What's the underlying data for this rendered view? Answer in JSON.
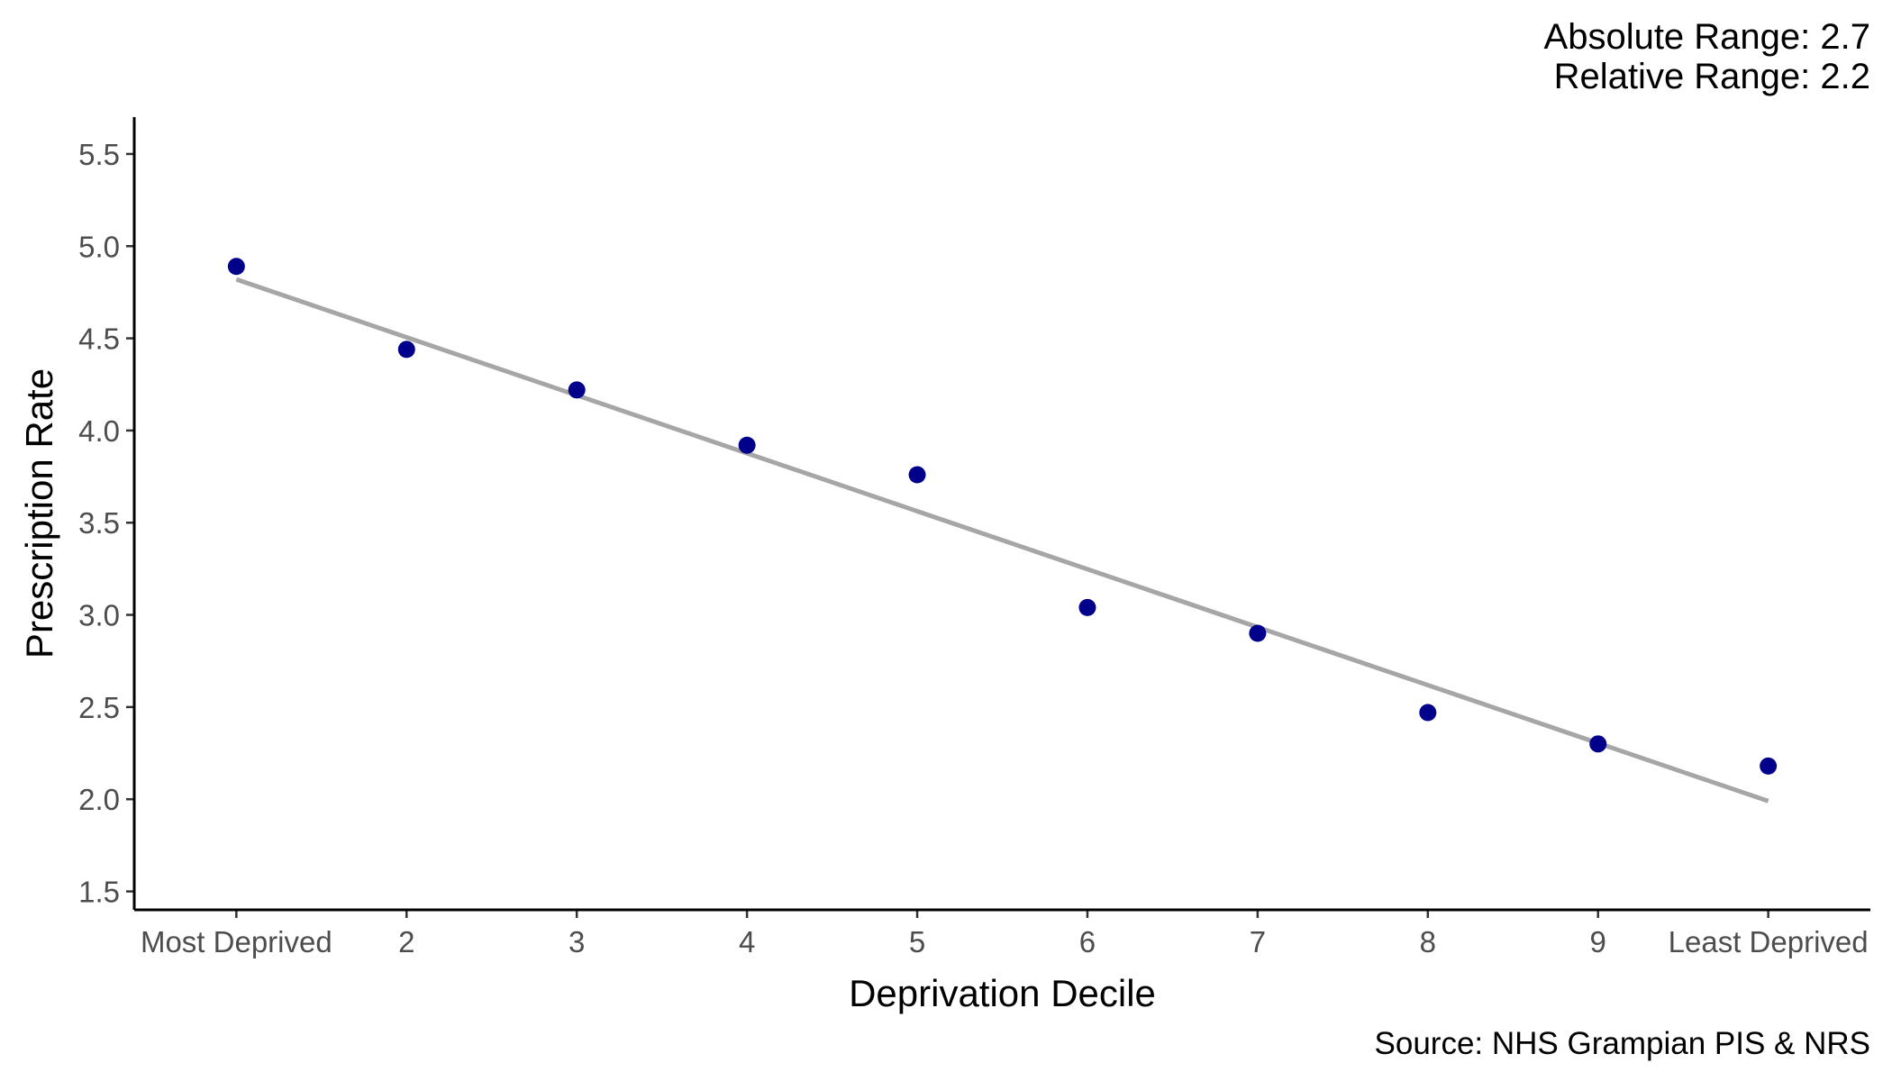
{
  "chart_data": {
    "type": "scatter",
    "title": "",
    "xlabel": "Deprivation Decile",
    "ylabel": "Prescription Rate",
    "categories": [
      "Most Deprived",
      "2",
      "3",
      "4",
      "5",
      "6",
      "7",
      "8",
      "9",
      "Least Deprived"
    ],
    "x": [
      1,
      2,
      3,
      4,
      5,
      6,
      7,
      8,
      9,
      10
    ],
    "series": [
      {
        "name": "Prescription Rate",
        "color": "#00008B",
        "values": [
          4.89,
          4.44,
          4.22,
          3.92,
          3.76,
          3.04,
          2.9,
          2.47,
          2.3,
          2.18
        ]
      }
    ],
    "trend_line": {
      "color": "#A6A6A6",
      "start": 4.82,
      "end": 1.99
    },
    "ylim": [
      1.4,
      5.7
    ],
    "xlim": [
      0.4,
      10.6
    ],
    "yticks": [
      1.5,
      2.0,
      2.5,
      3.0,
      3.5,
      4.0,
      4.5,
      5.0,
      5.5
    ],
    "ytick_labels": [
      "1.5",
      "2.0",
      "2.5",
      "3.0",
      "3.5",
      "4.0",
      "4.5",
      "5.0",
      "5.5"
    ],
    "grid": false,
    "annotations": [
      "Absolute Range: 2.7",
      "Relative Range: 2.2"
    ],
    "caption": "Source: NHS Grampian PIS & NRS"
  }
}
